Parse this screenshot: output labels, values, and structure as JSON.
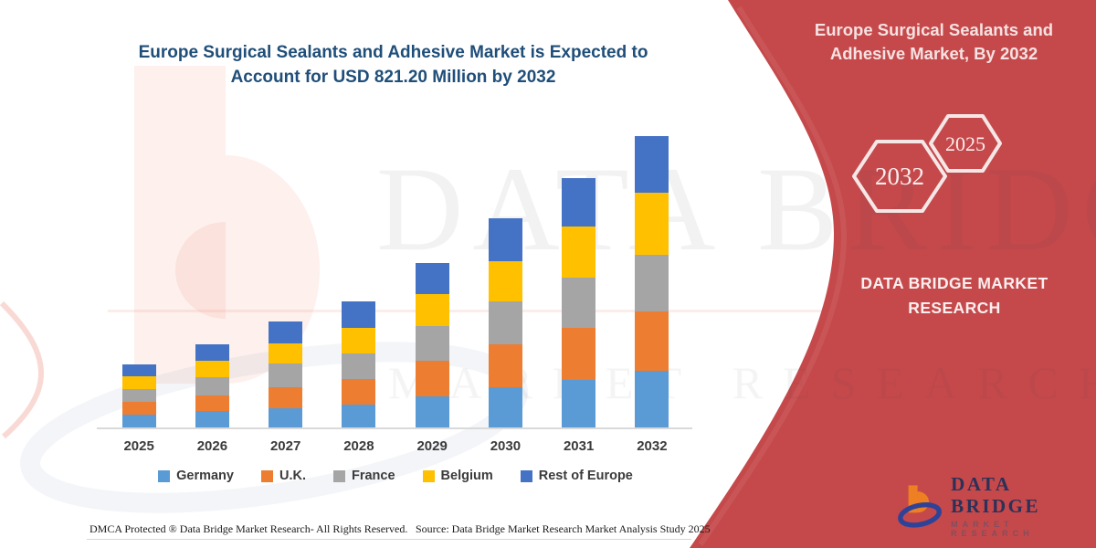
{
  "colors": {
    "panel_red": "#C5494B",
    "title_blue": "#1F4E79",
    "axis_gray": "#D9D9D9",
    "label_gray": "#3B3B3B",
    "logo_navy": "#2B3158",
    "logo_orange": "#EE8023",
    "hex_outline_white": "#F6E7E7"
  },
  "chart": {
    "title_line1": "Europe Surgical Sealants and Adhesive Market is Expected to",
    "title_line2": "Account for USD 821.20 Million by 2032"
  },
  "chart_data": {
    "type": "bar",
    "stacked": true,
    "unit": "USD Million",
    "title": "Europe Surgical Sealants and Adhesive Market is Expected to Account for USD 821.20 Million by 2032",
    "categories": [
      "2025",
      "2026",
      "2027",
      "2028",
      "2029",
      "2030",
      "2031",
      "2032"
    ],
    "series": [
      {
        "name": "Germany",
        "color": "#5B9BD5",
        "values": [
          35,
          47,
          54,
          64,
          88,
          113,
          134,
          159
        ]
      },
      {
        "name": "U.K.",
        "color": "#ED7D31",
        "values": [
          38,
          44,
          59,
          72,
          99,
          122,
          147,
          169
        ]
      },
      {
        "name": "France",
        "color": "#A5A5A5",
        "values": [
          35,
          50,
          66,
          73,
          99,
          119,
          142,
          159
        ]
      },
      {
        "name": "Belgium",
        "color": "#FFC000",
        "values": [
          35,
          47,
          59,
          72,
          90,
          114,
          143,
          173
        ]
      },
      {
        "name": "Rest of Europe",
        "color": "#4472C4",
        "values": [
          35,
          47,
          60,
          73,
          88,
          121,
          137,
          161
        ]
      }
    ],
    "estimated_totals": [
      178,
      235,
      298,
      354,
      464,
      589,
      703,
      821
    ],
    "labeled_total_2032": "USD 821.20 Million",
    "xlabel": "",
    "ylabel": "",
    "ylim": [
      0,
      900
    ],
    "y_axis_visible": false,
    "grid": false,
    "legend_position": "bottom"
  },
  "panel": {
    "title": "Europe Surgical Sealants and Adhesive Market, By 2032",
    "hexagons": [
      {
        "label": "2032"
      },
      {
        "label": "2025"
      }
    ],
    "caption": "DATA BRIDGE MARKET RESEARCH"
  },
  "watermark": {
    "line1": "DATA BRIDGE",
    "line2": "MARKET RESEARCH"
  },
  "logo": {
    "name": "DATA BRIDGE",
    "tagline": "MARKET RESEARCH"
  },
  "footer": {
    "dmca": "DMCA Protected ® Data Bridge Market Research- All Rights Reserved.",
    "source": "Source: Data Bridge Market Research Market Analysis Study 2025"
  }
}
